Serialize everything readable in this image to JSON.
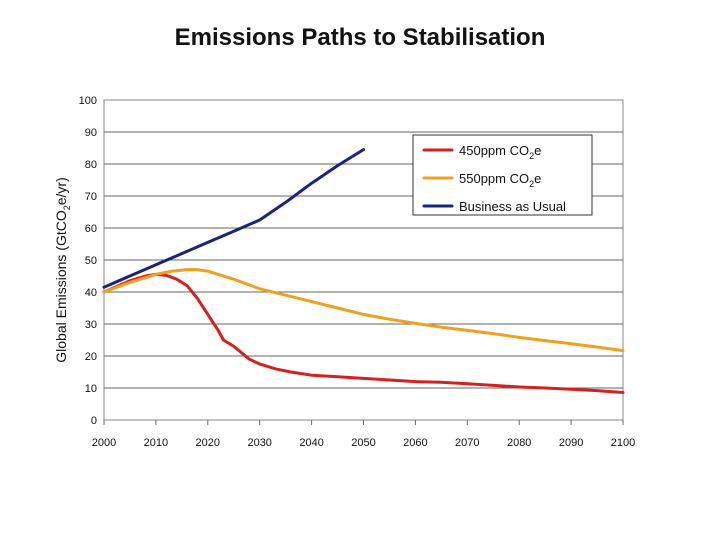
{
  "chart_data": {
    "type": "line",
    "title": "Emissions Paths to Stabilisation",
    "xlabel": "",
    "ylabel": {
      "pre": "Global Emissions (GtCO",
      "sub": "2",
      "post": "e/yr)"
    },
    "xlim": [
      2000,
      2100
    ],
    "ylim": [
      0,
      100
    ],
    "xticks": [
      "2000",
      "2010",
      "2020",
      "2030",
      "2040",
      "2050",
      "2060",
      "2070",
      "2080",
      "2090",
      "2100"
    ],
    "yticks": [
      "0",
      "10",
      "20",
      "30",
      "40",
      "50",
      "60",
      "70",
      "80",
      "90",
      "100"
    ],
    "grid": "horizontal",
    "legend_position": "top-right",
    "series": [
      {
        "name": {
          "pre": "450ppm CO",
          "sub": "2",
          "post": "e"
        },
        "color": "#d42020",
        "x": [
          2000,
          2005,
          2008,
          2010,
          2012,
          2014,
          2016,
          2018,
          2020,
          2022,
          2023,
          2025,
          2028,
          2030,
          2033,
          2036,
          2040,
          2045,
          2050,
          2055,
          2060,
          2065,
          2070,
          2075,
          2080,
          2085,
          2090,
          2095,
          2100
        ],
        "y": [
          40,
          43.5,
          45,
          45.5,
          45.2,
          44,
          42,
          38,
          33,
          28,
          25,
          23,
          19,
          17.5,
          16,
          15,
          14,
          13.5,
          13,
          12.5,
          12,
          11.8,
          11.3,
          10.8,
          10.3,
          10,
          9.6,
          9.2,
          8.6
        ]
      },
      {
        "name": {
          "pre": "550ppm CO",
          "sub": "2",
          "post": "e"
        },
        "color": "#f0a020",
        "x": [
          2000,
          2005,
          2010,
          2013,
          2016,
          2018,
          2020,
          2025,
          2030,
          2035,
          2040,
          2045,
          2050,
          2055,
          2060,
          2065,
          2070,
          2075,
          2080,
          2085,
          2090,
          2095,
          2100
        ],
        "y": [
          40,
          43,
          45.5,
          46.5,
          47,
          47,
          46.5,
          44,
          41,
          39,
          37,
          35,
          33,
          31.5,
          30.2,
          29,
          28,
          27,
          25.8,
          24.8,
          23.8,
          22.8,
          21.7
        ]
      },
      {
        "name": {
          "pre": "Business as Usual",
          "sub": "",
          "post": ""
        },
        "color": "#1a237e",
        "x": [
          2000,
          2005,
          2010,
          2015,
          2020,
          2025,
          2030,
          2035,
          2040,
          2045,
          2050
        ],
        "y": [
          41.5,
          45,
          48.5,
          52,
          55.5,
          59,
          62.5,
          68,
          74,
          79.5,
          84.5
        ]
      }
    ]
  }
}
